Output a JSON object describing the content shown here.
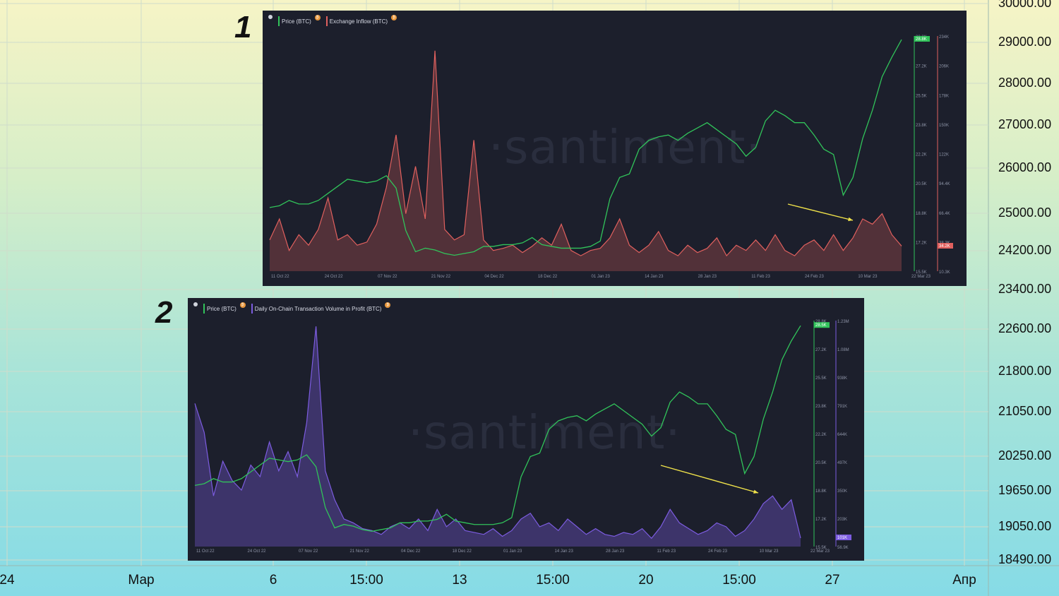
{
  "background_chart": {
    "price_axis": [
      "30000.00",
      "29000.00",
      "28000.00",
      "27000.00",
      "26000.00",
      "25000.00",
      "24200.00",
      "23400.00",
      "22600.00",
      "21800.00",
      "21050.00",
      "20250.00",
      "19650.00",
      "19050.00",
      "18490.00"
    ],
    "time_axis": [
      "24",
      "Мар",
      "6",
      "15:00",
      "13",
      "15:00",
      "20",
      "15:00",
      "27",
      "Апр"
    ],
    "colors": {
      "gradient_top": "#f6f4c6",
      "gradient_bottom": "#86dbe6",
      "grid": "#cfd8c8"
    }
  },
  "panels": [
    {
      "number": "1",
      "watermark": "·santiment·",
      "legend": [
        {
          "label": "Price (BTC)",
          "color": "#31c35a"
        },
        {
          "label": "Exchange Inflow (BTC)",
          "color": "#e0605e"
        }
      ],
      "price_ticks": [
        "28.8K",
        "27.2K",
        "25.5K",
        "23.8K",
        "22.2K",
        "20.5K",
        "18.8K",
        "17.2K",
        "15.5K"
      ],
      "secondary_ticks": [
        "234K",
        "206K",
        "178K",
        "150K",
        "122K",
        "94.4K",
        "66.4K",
        "38.3K",
        "10.3K"
      ],
      "price_badge": "28.8K",
      "secondary_badge": "34.2K",
      "x_labels": [
        "11 Oct 22",
        "24 Oct 22",
        "07 Nov 22",
        "21 Nov 22",
        "04 Dec 22",
        "18 Dec 22",
        "01 Jan 23",
        "14 Jan 23",
        "28 Jan 23",
        "11 Feb 23",
        "24 Feb 23",
        "10 Mar 23",
        "22 Mar 23"
      ]
    },
    {
      "number": "2",
      "watermark": "·santiment·",
      "legend": [
        {
          "label": "Price (BTC)",
          "color": "#31c35a"
        },
        {
          "label": "Daily On-Chain Transaction Volume in Profit (BTC)",
          "color": "#7c5ce0"
        }
      ],
      "price_ticks": [
        "28.8K",
        "27.2K",
        "25.5K",
        "23.8K",
        "22.2K",
        "20.5K",
        "18.8K",
        "17.2K",
        "15.5K"
      ],
      "secondary_ticks": [
        "1.23M",
        "1.08M",
        "938K",
        "791K",
        "644K",
        "497K",
        "350K",
        "203K",
        "56.9K"
      ],
      "price_badge": "28.5K",
      "secondary_badge": "101K",
      "x_labels": [
        "11 Oct 22",
        "24 Oct 22",
        "07 Nov 22",
        "21 Nov 22",
        "04 Dec 22",
        "18 Dec 22",
        "01 Jan 23",
        "14 Jan 23",
        "28 Jan 23",
        "11 Feb 23",
        "24 Feb 23",
        "10 Mar 23",
        "22 Mar 23"
      ]
    }
  ],
  "chart_data": [
    {
      "type": "line",
      "title": "",
      "x_range": [
        "11 Oct 22",
        "22 Mar 23"
      ],
      "y_range_price": [
        15500,
        28800
      ],
      "y_range_secondary": [
        10300,
        234000
      ],
      "series": [
        {
          "name": "Price (BTC)",
          "color": "#31c35a",
          "values": [
            19100,
            19200,
            19500,
            19300,
            19300,
            19500,
            19900,
            20300,
            20700,
            20600,
            20500,
            20600,
            20900,
            20200,
            17800,
            16600,
            16800,
            16700,
            16500,
            16400,
            16500,
            16600,
            16900,
            16900,
            17000,
            17000,
            17100,
            17400,
            17000,
            16900,
            16800,
            16800,
            16800,
            16900,
            17200,
            19600,
            20800,
            21000,
            22400,
            22900,
            23100,
            23200,
            22900,
            23300,
            23600,
            23900,
            23500,
            23100,
            22700,
            22000,
            22500,
            24000,
            24600,
            24300,
            23900,
            23900,
            23200,
            22400,
            22100,
            19800,
            20800,
            23000,
            24600,
            26500,
            27600,
            28600
          ]
        },
        {
          "name": "Exchange Inflow (BTC)",
          "color": "#e0605e",
          "values": [
            40000,
            60000,
            30000,
            45000,
            35000,
            50000,
            80000,
            40000,
            45000,
            35000,
            38000,
            55000,
            90000,
            140000,
            65000,
            110000,
            60000,
            220000,
            50000,
            40000,
            45000,
            135000,
            40000,
            30000,
            32000,
            35000,
            28000,
            34000,
            42000,
            35000,
            55000,
            30000,
            25000,
            30000,
            32000,
            42000,
            60000,
            35000,
            28000,
            35000,
            48000,
            30000,
            25000,
            35000,
            28000,
            32000,
            42000,
            25000,
            35000,
            30000,
            40000,
            30000,
            45000,
            30000,
            25000,
            35000,
            40000,
            30000,
            45000,
            30000,
            42000,
            60000,
            55000,
            65000,
            45000,
            34200
          ]
        }
      ]
    },
    {
      "type": "line",
      "title": "",
      "x_range": [
        "11 Oct 22",
        "22 Mar 23"
      ],
      "y_range_price": [
        15500,
        28800
      ],
      "y_range_secondary": [
        56900,
        1230000
      ],
      "series": [
        {
          "name": "Price (BTC)",
          "color": "#31c35a",
          "values": [
            19100,
            19200,
            19500,
            19300,
            19300,
            19500,
            19900,
            20300,
            20700,
            20600,
            20500,
            20600,
            20900,
            20200,
            17800,
            16600,
            16800,
            16700,
            16500,
            16400,
            16500,
            16600,
            16900,
            16900,
            17000,
            17000,
            17100,
            17400,
            17000,
            16900,
            16800,
            16800,
            16800,
            16900,
            17200,
            19600,
            20800,
            21000,
            22400,
            22900,
            23100,
            23200,
            22900,
            23300,
            23600,
            23900,
            23500,
            23100,
            22700,
            22000,
            22500,
            24000,
            24600,
            24300,
            23900,
            23900,
            23200,
            22400,
            22100,
            19800,
            20800,
            23000,
            24600,
            26500,
            27600,
            28500
          ]
        },
        {
          "name": "Daily On-Chain Transaction Volume in Profit (BTC)",
          "color": "#7c5ce0",
          "values": [
            800000,
            650000,
            320000,
            500000,
            400000,
            350000,
            480000,
            420000,
            600000,
            450000,
            550000,
            420000,
            700000,
            1200000,
            450000,
            300000,
            200000,
            180000,
            150000,
            140000,
            120000,
            160000,
            180000,
            150000,
            200000,
            140000,
            250000,
            160000,
            200000,
            140000,
            130000,
            120000,
            150000,
            110000,
            140000,
            200000,
            230000,
            160000,
            180000,
            140000,
            200000,
            160000,
            120000,
            150000,
            120000,
            110000,
            130000,
            120000,
            150000,
            100000,
            160000,
            250000,
            180000,
            150000,
            120000,
            140000,
            180000,
            160000,
            110000,
            140000,
            200000,
            280000,
            320000,
            250000,
            300000,
            101000
          ]
        }
      ]
    }
  ]
}
